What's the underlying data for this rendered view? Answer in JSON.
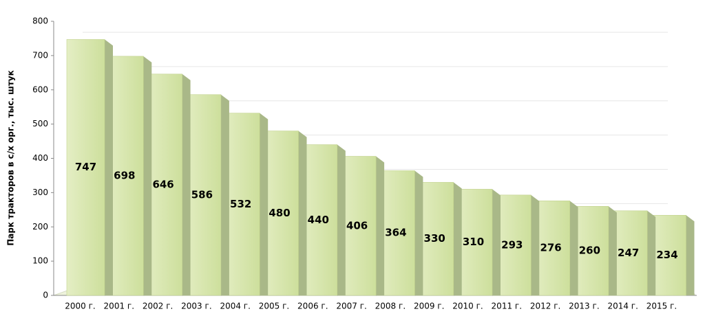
{
  "chart_data": {
    "type": "bar",
    "y_label": "Парк тракторов в с/х орг., тыс. штук",
    "categories": [
      "2000 г.",
      "2001 г.",
      "2002 г.",
      "2003 г.",
      "2004 г.",
      "2005 г.",
      "2006 г.",
      "2007 г.",
      "2008 г.",
      "2009 г.",
      "2010 г.",
      "2011 г.",
      "2012 г.",
      "2013 г.",
      "2014 г.",
      "2015 г."
    ],
    "values": [
      747,
      698,
      646,
      586,
      532,
      480,
      440,
      406,
      364,
      330,
      310,
      293,
      276,
      260,
      247,
      234
    ],
    "color": "#d8e6ae",
    "ylim": [
      0,
      800
    ],
    "yticks": [
      0,
      100,
      200,
      300,
      400,
      500,
      600,
      700,
      800
    ],
    "grid": true
  }
}
